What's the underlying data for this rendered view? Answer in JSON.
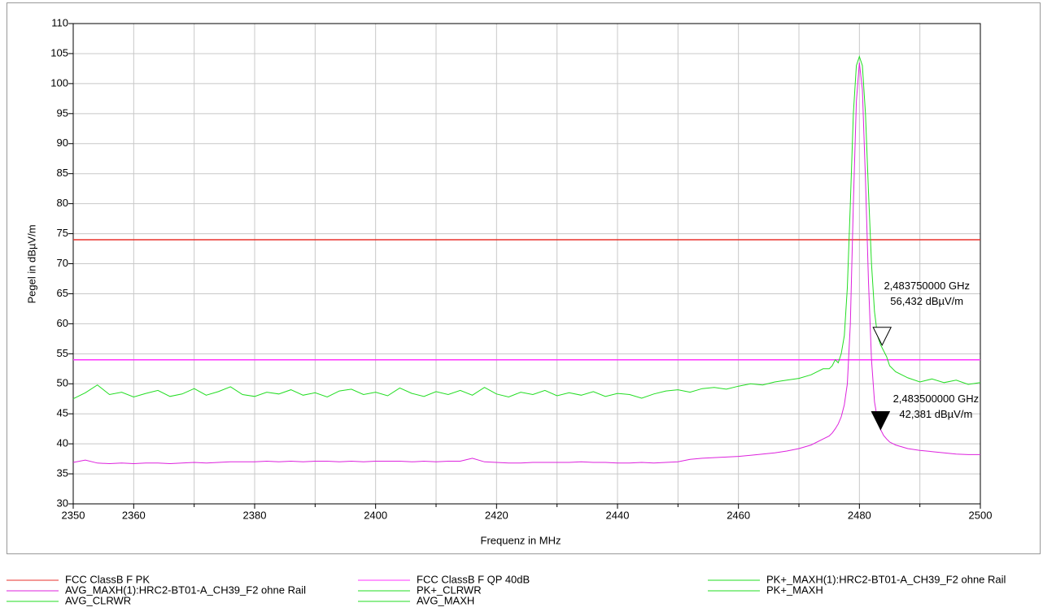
{
  "chart_data": {
    "type": "line",
    "xlabel": "Frequenz in MHz",
    "ylabel": "Pegel in dBµV/m",
    "xlim": [
      2350,
      2500
    ],
    "xticks": [
      2350,
      2360,
      2380,
      2400,
      2420,
      2440,
      2460,
      2480,
      2500
    ],
    "x_minor_ticks": [
      2370,
      2390,
      2410,
      2430,
      2450,
      2470,
      2490
    ],
    "ylim": [
      30,
      110
    ],
    "yticks": [
      30,
      35,
      40,
      45,
      50,
      55,
      60,
      65,
      70,
      75,
      80,
      85,
      90,
      95,
      100,
      105,
      110
    ],
    "grid": true,
    "x": [
      2350,
      2352,
      2354,
      2356,
      2358,
      2360,
      2362,
      2364,
      2366,
      2368,
      2370,
      2372,
      2374,
      2376,
      2378,
      2380,
      2382,
      2384,
      2386,
      2388,
      2390,
      2392,
      2394,
      2396,
      2398,
      2400,
      2402,
      2404,
      2406,
      2408,
      2410,
      2412,
      2414,
      2416,
      2418,
      2420,
      2422,
      2424,
      2426,
      2428,
      2430,
      2432,
      2434,
      2436,
      2438,
      2440,
      2442,
      2444,
      2446,
      2448,
      2450,
      2452,
      2454,
      2456,
      2458,
      2460,
      2462,
      2464,
      2466,
      2468,
      2470,
      2472,
      2474,
      2475,
      2475.5,
      2476,
      2476.5,
      2477,
      2477.5,
      2478,
      2478.5,
      2479,
      2479.5,
      2480,
      2480.5,
      2481,
      2481.5,
      2482,
      2482.5,
      2483,
      2483.5,
      2484,
      2484.5,
      2485,
      2486,
      2488,
      2490,
      2492,
      2494,
      2496,
      2498,
      2500
    ],
    "series": [
      {
        "name": "FCC ClassB F PK",
        "color": "#e8322b",
        "value": 74
      },
      {
        "name": "FCC ClassB F QP 40dB",
        "color": "#ff33ff",
        "value": 54
      },
      {
        "name": "PK+_MAXH(1):HRC2-BT01-A_CH39_F2 ohne Rail",
        "color": "#22dd22",
        "values": [
          47.5,
          48.5,
          49.8,
          48.2,
          48.6,
          47.8,
          48.4,
          48.9,
          47.9,
          48.3,
          49.2,
          48.1,
          48.7,
          49.5,
          48.2,
          47.9,
          48.6,
          48.3,
          49.0,
          48.1,
          48.5,
          47.8,
          48.8,
          49.1,
          48.2,
          48.6,
          48.0,
          49.3,
          48.4,
          47.9,
          48.7,
          48.2,
          48.9,
          48.1,
          49.4,
          48.3,
          47.8,
          48.6,
          48.2,
          48.9,
          48.0,
          48.5,
          48.1,
          48.7,
          47.9,
          48.4,
          48.2,
          47.6,
          48.3,
          48.8,
          49.0,
          48.6,
          49.2,
          49.4,
          49.1,
          49.6,
          50.0,
          49.8,
          50.3,
          50.6,
          50.9,
          51.5,
          52.5,
          52.5,
          53,
          54,
          53.5,
          55,
          58,
          66,
          80,
          95,
          103,
          104.5,
          103,
          95,
          82,
          70,
          62,
          58,
          56.5,
          55.5,
          54.5,
          53,
          52,
          51,
          50.3,
          50.8,
          50.2,
          50.6,
          49.9,
          50.2
        ]
      },
      {
        "name": "AVG_MAXH(1):HRC2-BT01-A_CH39_F2 ohne Rail",
        "color": "#dd22dd",
        "values": [
          36.9,
          37.3,
          36.8,
          36.7,
          36.8,
          36.7,
          36.8,
          36.8,
          36.7,
          36.8,
          36.9,
          36.8,
          36.9,
          37.0,
          37.0,
          37.0,
          37.1,
          37.0,
          37.1,
          37.0,
          37.1,
          37.1,
          37.0,
          37.1,
          37.0,
          37.1,
          37.1,
          37.1,
          37.0,
          37.1,
          37.0,
          37.1,
          37.1,
          37.6,
          37.0,
          36.9,
          36.8,
          36.8,
          36.9,
          36.9,
          36.9,
          36.9,
          37.0,
          36.9,
          36.9,
          36.8,
          36.8,
          36.9,
          36.8,
          36.9,
          37.0,
          37.4,
          37.6,
          37.7,
          37.8,
          37.9,
          38.1,
          38.3,
          38.5,
          38.8,
          39.2,
          39.8,
          40.8,
          41.3,
          41.8,
          42.5,
          43.3,
          44.5,
          46.5,
          50,
          60,
          80,
          97,
          103.5,
          99,
          84,
          67,
          54,
          47,
          44,
          42.4,
          41.4,
          40.8,
          40.3,
          39.8,
          39.2,
          38.9,
          38.7,
          38.5,
          38.3,
          38.2,
          38.2
        ]
      },
      {
        "name": "PK+_CLRWR",
        "color": "#22dd22"
      },
      {
        "name": "PK+_MAXH",
        "color": "#22dd22"
      },
      {
        "name": "AVG_CLRWR",
        "color": "#22dd22"
      },
      {
        "name": "AVG_MAXH",
        "color": "#22dd22"
      }
    ],
    "legend_order": [
      0,
      1,
      2,
      3,
      4,
      5,
      6,
      7
    ],
    "markers": [
      {
        "x": 2483.75,
        "y": 56.432,
        "freq_label": "2,483750000 GHz",
        "level_label": "56,432 dBµV/m",
        "filled": false
      },
      {
        "x": 2483.5,
        "y": 42.381,
        "freq_label": "2,483500000 GHz",
        "level_label": "42,381 dBµV/m",
        "filled": true
      }
    ]
  }
}
